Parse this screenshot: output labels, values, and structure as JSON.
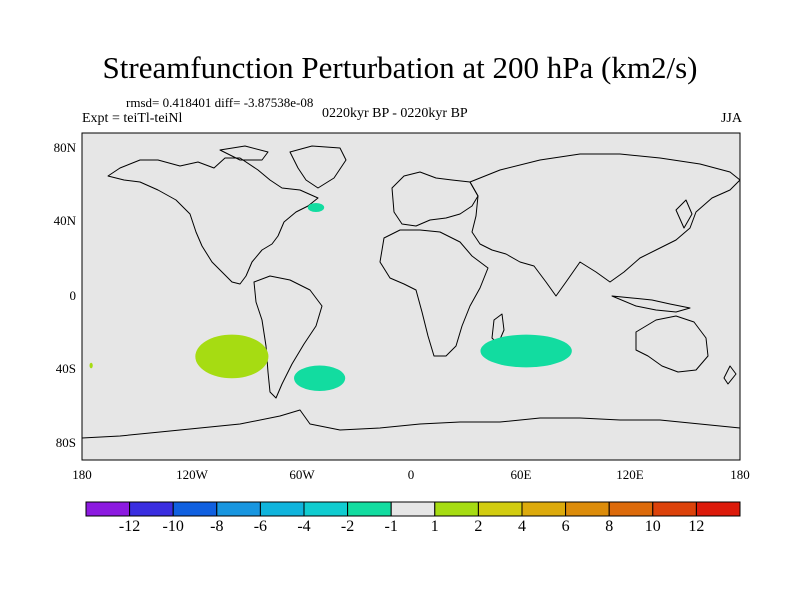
{
  "title": "Streamfunction Perturbation at 200 hPa (km2/s)",
  "stats": "rmsd= 0.418401 diff= -3.87538e-08",
  "experiment": "Expt = teiTl-teiNl",
  "period": "0220kyr BP - 0220kyr BP",
  "season": "JJA",
  "y_ticks": [
    "80N",
    "40N",
    "0",
    "40S",
    "80S"
  ],
  "x_ticks": [
    "180",
    "120W",
    "60W",
    "0",
    "60E",
    "120E",
    "180"
  ],
  "colorbar": {
    "colors": [
      "#8c1ae0",
      "#3a2ee0",
      "#1060e0",
      "#1896e0",
      "#10b4dc",
      "#10ccd0",
      "#12dca0",
      "#e6e6e6",
      "#a6dc12",
      "#d2cc10",
      "#dcaa0c",
      "#dc8c0a",
      "#dc6a0a",
      "#dc420a",
      "#dc1a0a"
    ],
    "labels": [
      "-12",
      "-10",
      "-8",
      "-6",
      "-4",
      "-2",
      "-1",
      "1",
      "2",
      "4",
      "6",
      "8",
      "10",
      "12"
    ]
  },
  "anomalies": [
    {
      "name": "north-atlantic-blob",
      "lon": -52,
      "lat": 49,
      "value_class": "-1 to -2",
      "color": "#12dca0"
    },
    {
      "name": "south-pacific-blob",
      "lon": -98,
      "lat": -33,
      "value_class": "1 to 2",
      "color": "#a6dc12"
    },
    {
      "name": "south-atlantic-blob",
      "lon": -50,
      "lat": -45,
      "value_class": "-1 to -2",
      "color": "#12dca0"
    },
    {
      "name": "indian-ocean-blob",
      "lon": 63,
      "lat": -30,
      "value_class": "-1 to -2",
      "color": "#12dca0"
    },
    {
      "name": "tiny-pacific-dot",
      "lon": -175,
      "lat": -38,
      "value_class": "1 to 2",
      "color": "#a6dc12"
    }
  ],
  "colors": {
    "background": "#e6e6e6",
    "coast": "#000000"
  }
}
